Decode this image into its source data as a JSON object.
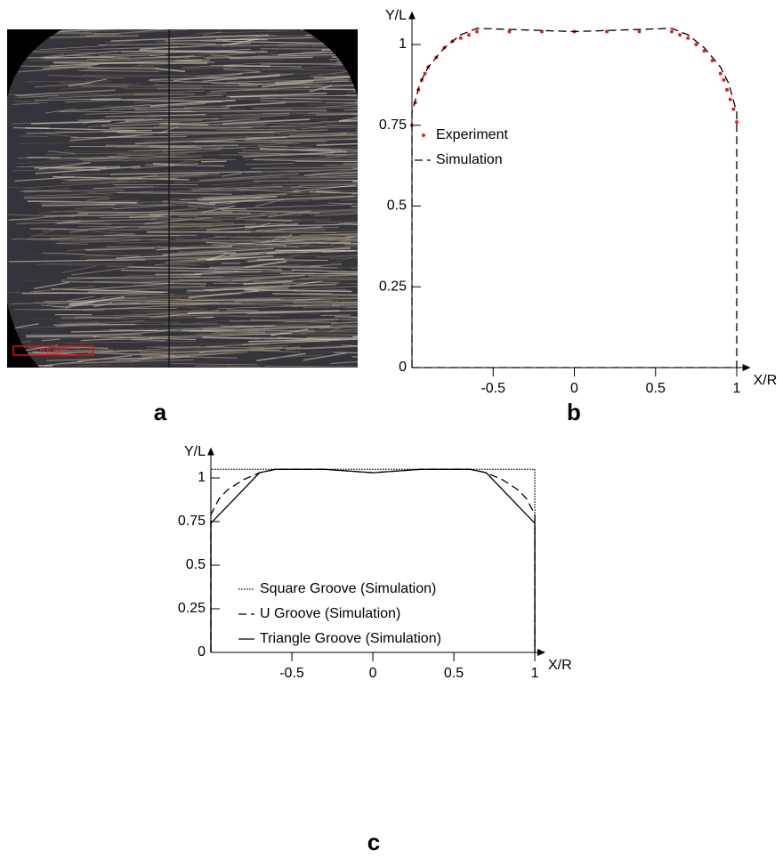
{
  "image_panel": {
    "caption": "a",
    "scale_bar_label": "0.5 mm"
  },
  "chart_data": [
    {
      "type": "line",
      "caption": "b",
      "x_label": "X/R",
      "y_label": "Y/L",
      "xlim": [
        -1,
        1.08
      ],
      "ylim": [
        0,
        1.1
      ],
      "xticks": [
        -0.5,
        0,
        0.5,
        1
      ],
      "yticks": [
        0,
        0.25,
        0.5,
        0.75,
        1
      ],
      "legend": "upper left",
      "series": [
        {
          "name": "Experiment",
          "color": "#e8201a",
          "style": "dots",
          "x": [
            -1,
            -0.98,
            -0.96,
            -0.94,
            -0.92,
            -0.9,
            -0.85,
            -0.8,
            -0.75,
            -0.7,
            -0.65,
            -0.6,
            -0.4,
            -0.2,
            0,
            0.2,
            0.4,
            0.6,
            0.65,
            0.7,
            0.75,
            0.8,
            0.85,
            0.9,
            0.92,
            0.94,
            0.96,
            0.98,
            1
          ],
          "values": [
            0.75,
            0.82,
            0.86,
            0.89,
            0.91,
            0.93,
            0.96,
            0.99,
            1.01,
            1.02,
            1.03,
            1.04,
            1.04,
            1.04,
            1.04,
            1.04,
            1.04,
            1.04,
            1.03,
            1.02,
            1.0,
            0.98,
            0.95,
            0.91,
            0.89,
            0.86,
            0.83,
            0.8,
            0.76
          ]
        },
        {
          "name": "Simulation",
          "color": "#000000",
          "style": "dashed",
          "x": [
            -1,
            -1,
            -0.95,
            -0.9,
            -0.8,
            -0.7,
            -0.6,
            0,
            0.6,
            0.7,
            0.8,
            0.9,
            0.95,
            1,
            1,
            -1
          ],
          "values": [
            0,
            0.79,
            0.88,
            0.93,
            0.99,
            1.03,
            1.05,
            1.04,
            1.05,
            1.03,
            0.99,
            0.93,
            0.88,
            0.79,
            0,
            0
          ]
        }
      ]
    },
    {
      "type": "line",
      "caption": "c",
      "x_label": "X/R",
      "y_label": "Y/L",
      "xlim": [
        -1,
        1.06
      ],
      "ylim": [
        0,
        1.17
      ],
      "xticks": [
        -0.5,
        0,
        0.5,
        1
      ],
      "yticks": [
        0,
        0.25,
        0.5,
        0.75,
        1
      ],
      "legend": "center left",
      "series": [
        {
          "name": "Square Groove (Simulation)",
          "color": "#000000",
          "style": "dotted",
          "x": [
            -1,
            -1,
            1,
            1
          ],
          "values": [
            0,
            1.05,
            1.05,
            0
          ]
        },
        {
          "name": "U Groove (Simulation)",
          "color": "#000000",
          "style": "dashed",
          "x": [
            -1,
            -1,
            -0.95,
            -0.9,
            -0.8,
            -0.7,
            -0.6,
            -0.3,
            0,
            0.3,
            0.6,
            0.7,
            0.8,
            0.9,
            0.95,
            1,
            1
          ],
          "values": [
            0,
            0.79,
            0.88,
            0.93,
            0.99,
            1.03,
            1.05,
            1.05,
            1.03,
            1.05,
            1.05,
            1.03,
            0.99,
            0.93,
            0.88,
            0.79,
            0
          ]
        },
        {
          "name": "Triangle Groove (Simulation)",
          "color": "#000000",
          "style": "solid",
          "x": [
            -1,
            -1,
            -0.7,
            -0.6,
            -0.3,
            0,
            0.3,
            0.6,
            0.7,
            1,
            1
          ],
          "values": [
            0,
            0.74,
            1.03,
            1.05,
            1.05,
            1.03,
            1.05,
            1.05,
            1.03,
            0.74,
            0
          ]
        }
      ]
    }
  ]
}
